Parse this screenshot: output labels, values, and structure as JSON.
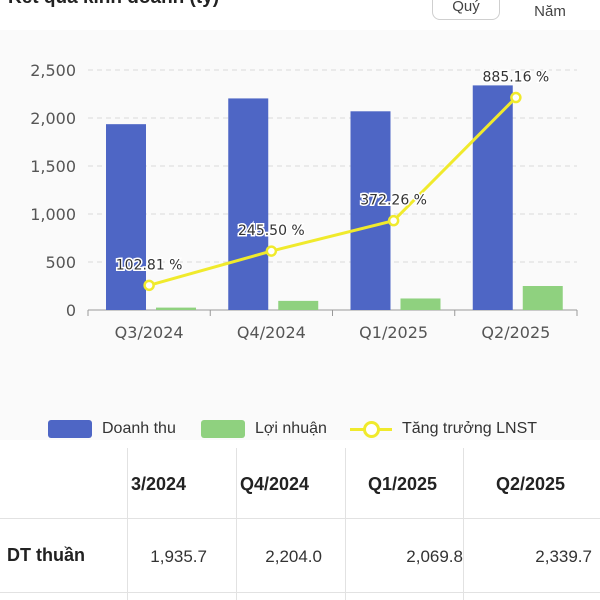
{
  "header": {
    "title": "Kết quả kinh doanh (tỷ)",
    "toggle_quarter": "Quý",
    "toggle_year": "Năm"
  },
  "legend": {
    "revenue": "Doanh thu",
    "profit": "Lợi nhuận",
    "growth": "Tăng trưởng LNST"
  },
  "colors": {
    "revenue": "#4e66c5",
    "profit": "#8fd17f",
    "growth": "#f0ea2c",
    "grid": "#d9d9d9"
  },
  "chart_data": {
    "type": "bar",
    "categories": [
      "Q3/2024",
      "Q4/2024",
      "Q1/2025",
      "Q2/2025"
    ],
    "series": [
      {
        "name": "Doanh thu",
        "type": "bar",
        "values": [
          1935.7,
          2204.0,
          2069.8,
          2339.7
        ]
      },
      {
        "name": "Lợi nhuận",
        "type": "bar",
        "values": [
          25,
          95,
          120,
          250
        ]
      },
      {
        "name": "Tăng trưởng LNST",
        "type": "line",
        "values": [
          102.81,
          245.5,
          372.26,
          885.16
        ],
        "labels": [
          "102.81 %",
          "245.50 %",
          "372.26 %",
          "885.16 %"
        ]
      }
    ],
    "y_ticks": [
      "2,500",
      "2,000",
      "1,500",
      "1,000",
      "500",
      "0"
    ],
    "ylim": [
      0,
      2500
    ],
    "grid": true,
    "legend_position": "bottom"
  },
  "table": {
    "headers": [
      "3/2024",
      "Q4/2024",
      "Q1/2025",
      "Q2/2025"
    ],
    "rows": [
      {
        "label": "DT thuần",
        "values": [
          "1,935.7",
          "2,204.0",
          "2,069.8",
          "2,339.7"
        ]
      }
    ]
  }
}
